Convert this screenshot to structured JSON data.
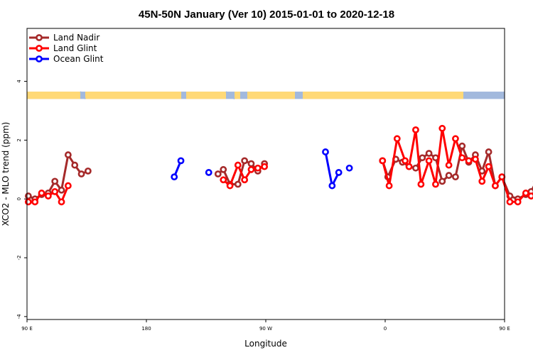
{
  "chart_data": {
    "type": "line",
    "title": "45N-50N January (Ver 10)   2015-01-01 to 2020-12-18",
    "xlabel": "Longitude",
    "ylabel": "XCO2 - MLO trend (ppm)",
    "xlim": [
      90,
      450
    ],
    "ylim": [
      -4.1,
      5.8
    ],
    "x_ticks": [
      {
        "value": 90,
        "label": "90 E"
      },
      {
        "value": 180,
        "label": "180"
      },
      {
        "value": 270,
        "label": "90 W"
      },
      {
        "value": 360,
        "label": "0"
      },
      {
        "value": 450,
        "label": "90 E"
      },
      {
        "value": 540,
        "label": "180"
      }
    ],
    "y_ticks": [
      {
        "value": -4,
        "label": "-4"
      },
      {
        "value": -2,
        "label": "-2"
      },
      {
        "value": 0,
        "label": "0"
      },
      {
        "value": 2,
        "label": "2"
      },
      {
        "value": 4,
        "label": "4"
      }
    ],
    "legend_position": "top-left",
    "land_band": {
      "y_range": [
        3.4,
        3.65
      ],
      "land_color": "#ffd977",
      "ocean_color": "#a2b9dd"
    },
    "series": [
      {
        "name": "Land Nadir",
        "color": "#a52a2a",
        "segments": [
          [
            [
              91,
              0.1
            ],
            [
              96,
              0
            ],
            [
              101,
              0.15
            ],
            [
              106,
              0.2
            ],
            [
              111,
              0.6
            ],
            [
              116,
              0.3
            ],
            [
              121,
              1.5
            ],
            [
              126,
              1.15
            ],
            [
              131,
              0.85
            ],
            [
              136,
              0.95
            ]
          ],
          [
            [
              234,
              0.85
            ],
            [
              238,
              1
            ],
            [
              243,
              0.5
            ],
            [
              249,
              0.5
            ],
            [
              254,
              1.3
            ],
            [
              259,
              1.2
            ],
            [
              264,
              0.95
            ],
            [
              269,
              1.2
            ]
          ],
          [
            [
              358,
              1.3
            ],
            [
              362,
              0.75
            ],
            [
              368,
              1.35
            ],
            [
              373,
              1.25
            ],
            [
              378,
              1.1
            ],
            [
              383,
              1.05
            ],
            [
              388,
              1.4
            ],
            [
              393,
              1.55
            ],
            [
              398,
              1.4
            ],
            [
              403,
              0.6
            ],
            [
              408,
              0.8
            ],
            [
              413,
              0.75
            ],
            [
              418,
              1.8
            ],
            [
              423,
              1.25
            ],
            [
              428,
              1.5
            ],
            [
              433,
              0.95
            ],
            [
              438,
              1.6
            ],
            [
              443,
              0.45
            ],
            [
              448,
              0.75
            ],
            [
              454,
              0.1
            ],
            [
              460,
              0
            ],
            [
              466,
              0.15
            ],
            [
              470,
              0.25
            ],
            [
              474,
              0.6
            ],
            [
              478,
              0.25
            ],
            [
              482,
              1.5
            ],
            [
              486,
              1.15
            ],
            [
              490,
              0.85
            ],
            [
              496,
              0.95
            ]
          ]
        ]
      },
      {
        "name": "Land Glint",
        "color": "#ff0000",
        "segments": [
          [
            [
              91,
              -0.1
            ],
            [
              96,
              -0.1
            ],
            [
              101,
              0.2
            ],
            [
              106,
              0.1
            ],
            [
              111,
              0.25
            ],
            [
              116,
              -0.1
            ],
            [
              121,
              0.45
            ]
          ],
          [
            [
              238,
              0.65
            ],
            [
              243,
              0.45
            ],
            [
              249,
              1.15
            ],
            [
              254,
              0.65
            ],
            [
              259,
              1
            ],
            [
              264,
              1.05
            ],
            [
              269,
              1.1
            ]
          ],
          [
            [
              358,
              1.3
            ],
            [
              363,
              0.45
            ],
            [
              369,
              2.05
            ],
            [
              375,
              1.3
            ],
            [
              378,
              1.1
            ],
            [
              383,
              2.35
            ],
            [
              387,
              0.5
            ],
            [
              393,
              1.3
            ],
            [
              398,
              0.5
            ],
            [
              403,
              2.4
            ],
            [
              408,
              1.15
            ],
            [
              413,
              2.05
            ],
            [
              418,
              1.4
            ],
            [
              423,
              1.3
            ],
            [
              428,
              1.35
            ],
            [
              433,
              0.6
            ],
            [
              438,
              1.1
            ],
            [
              443,
              0.45
            ],
            [
              448,
              0.75
            ],
            [
              454,
              -0.1
            ],
            [
              460,
              -0.1
            ],
            [
              466,
              0.2
            ],
            [
              470,
              0.1
            ],
            [
              474,
              0.25
            ],
            [
              478,
              -0.1
            ],
            [
              482,
              0.45
            ]
          ]
        ]
      },
      {
        "name": "Ocean Glint",
        "color": "#0000ff",
        "segments": [
          [
            [
              201,
              0.75
            ],
            [
              206,
              1.3
            ]
          ],
          [
            [
              227,
              0.9
            ]
          ],
          [
            [
              315,
              1.6
            ],
            [
              320,
              0.45
            ],
            [
              325,
              0.9
            ]
          ],
          [
            [
              333,
              1.05
            ]
          ]
        ]
      }
    ]
  }
}
